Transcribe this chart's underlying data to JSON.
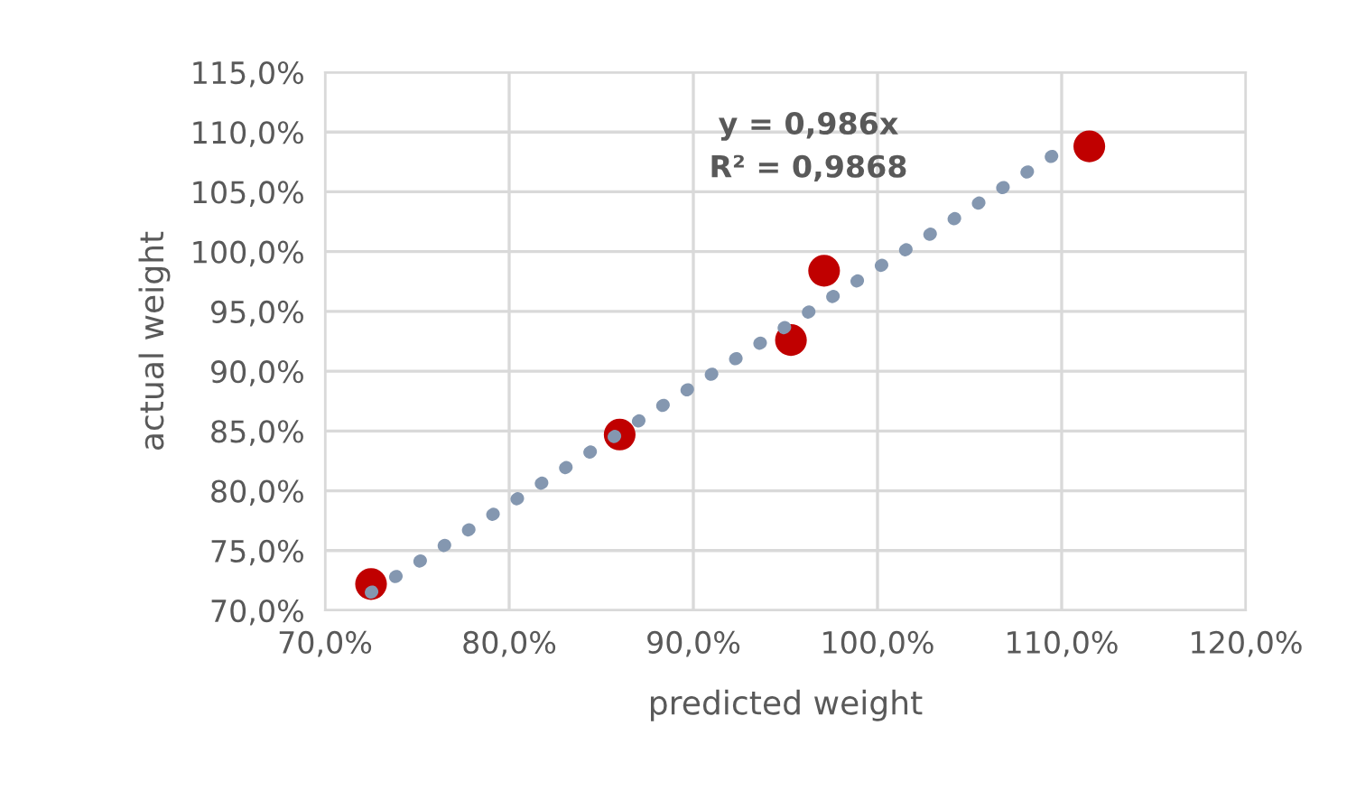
{
  "chart_data": {
    "type": "scatter",
    "xlabel": "predicted weight",
    "ylabel": "actual weight",
    "series": [
      {
        "color": "#c00000",
        "marker": "circle",
        "x": [
          72.5,
          86.0,
          95.3,
          97.1,
          111.5
        ],
        "values": [
          72.2,
          84.7,
          92.6,
          98.4,
          108.8
        ]
      },
      {
        "type": "line",
        "color": "#8497b0",
        "line_style": "dotted",
        "marker": "none",
        "x": [
          72.5,
          110.3
        ],
        "values": [
          71.5,
          108.8
        ]
      }
    ],
    "annotations": [
      "y = 0,986x\nR² = 0,9868"
    ],
    "xlim": [
      70,
      120
    ],
    "ylim": [
      70,
      115
    ],
    "xticks": [
      {
        "value": 70,
        "label": "70,0%"
      },
      {
        "value": 80,
        "label": "80,0%"
      },
      {
        "value": 90,
        "label": "90,0%"
      },
      {
        "value": 100,
        "label": "100,0%"
      },
      {
        "value": 110,
        "label": "110,0%"
      },
      {
        "value": 120,
        "label": "120,0%"
      }
    ],
    "yticks": [
      {
        "value": 70,
        "label": "70,0%"
      },
      {
        "value": 75,
        "label": "75,0%"
      },
      {
        "value": 80,
        "label": "80,0%"
      },
      {
        "value": 85,
        "label": "85,0%"
      },
      {
        "value": 90,
        "label": "90,0%"
      },
      {
        "value": 95,
        "label": "95,0%"
      },
      {
        "value": 100,
        "label": "100,0%"
      },
      {
        "value": 105,
        "label": "105,0%"
      },
      {
        "value": 110,
        "label": "110,0%"
      },
      {
        "value": 115,
        "label": "115,0%"
      }
    ],
    "grid": true,
    "legend": false
  }
}
